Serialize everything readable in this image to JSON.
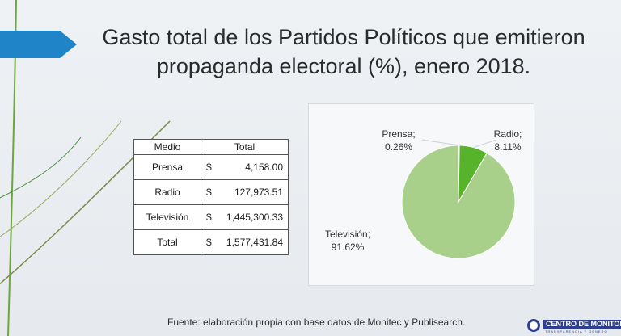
{
  "slide": {
    "title_line1": "Gasto total de los Partidos Políticos que emitieron",
    "title_line2": "propaganda electoral (%), enero 2018.",
    "source": "Fuente: elaboración propia con base datos de Monitec y Publisearch.",
    "accent_color": "#1f84c8"
  },
  "table": {
    "headers": [
      "Medio",
      "Total"
    ],
    "rows": [
      {
        "medio": "Prensa",
        "currency": "$",
        "total": "4,158.00"
      },
      {
        "medio": "Radio",
        "currency": "$",
        "total": "127,973.51"
      },
      {
        "medio": "Televisión",
        "currency": "$",
        "total": "1,445,300.33"
      },
      {
        "medio": "Total",
        "currency": "$",
        "total": "1,577,431.84"
      }
    ]
  },
  "chart_data": {
    "type": "pie",
    "slices": [
      {
        "label": "Prensa;",
        "percent_label": "0.26%",
        "value": 0.26,
        "color": "#9cbf22"
      },
      {
        "label": "Radio;",
        "percent_label": "8.11%",
        "value": 8.11,
        "color": "#56b32a"
      },
      {
        "label": "Televisión;",
        "percent_label": "91.62%",
        "value": 91.62,
        "color": "#a9d08a"
      }
    ]
  },
  "logo": {
    "text": "CENTRO DE MONITOREO",
    "subtext": "TRANSPARENCIA Y GENERO",
    "color": "#2f3f8f"
  }
}
